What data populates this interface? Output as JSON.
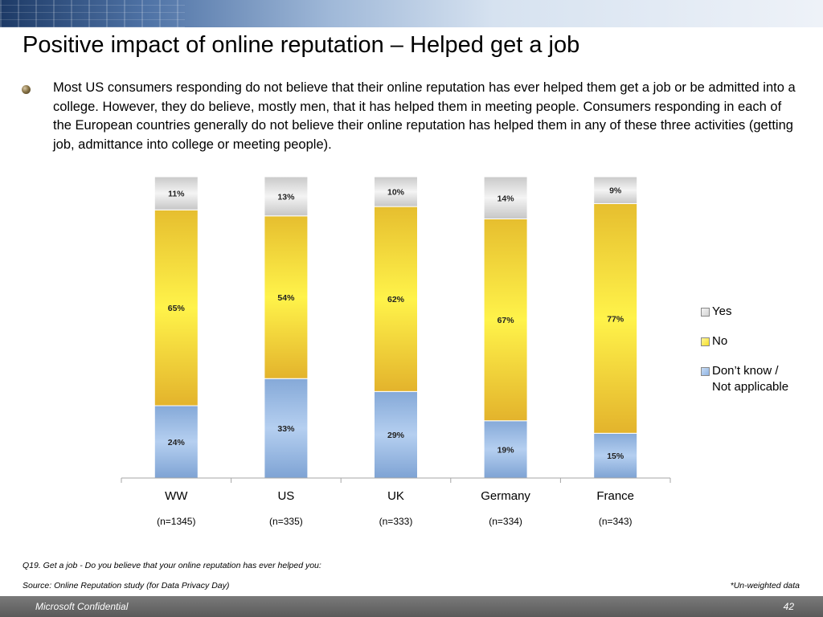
{
  "slide": {
    "title": "Positive impact of online reputation – Helped get a job",
    "body": "Most US consumers responding do not believe that their online reputation has ever helped them get a job or be admitted into a college. However, they do believe, mostly men, that it has helped them in meeting people. Consumers responding in each of the European countries generally  do not believe their online reputation has helped them in any of these three activities (getting  job, admittance into college or meeting people).",
    "question": "Q19. Get a job - Do you believe that your online reputation has ever helped you:",
    "source": "Source: Online Reputation study (for Data Privacy Day)",
    "note": "*Un-weighted data",
    "footer_left": "Microsoft Confidential",
    "page_number": "42"
  },
  "colors": {
    "yes": "#d4d4d4",
    "no": "#f5e02a",
    "dont_know": "#8fb4e3"
  },
  "chart_data": {
    "type": "bar",
    "stacked": true,
    "categories": [
      "WW",
      "US",
      "UK",
      "Germany",
      "France"
    ],
    "sample_sizes": [
      "(n=1345)",
      "(n=335)",
      "(n=333)",
      "(n=334)",
      "(n=343)"
    ],
    "series": [
      {
        "name": "Don’t know / Not applicable",
        "key": "dont_know",
        "values": [
          24,
          33,
          29,
          19,
          15
        ]
      },
      {
        "name": "No",
        "key": "no",
        "values": [
          65,
          54,
          62,
          67,
          77
        ]
      },
      {
        "name": "Yes",
        "key": "yes",
        "values": [
          11,
          13,
          10,
          14,
          9
        ]
      }
    ],
    "legend": [
      "Yes",
      "No",
      "Don’t know /\nNot applicable"
    ],
    "legend_position": "right",
    "value_format": "percent"
  }
}
